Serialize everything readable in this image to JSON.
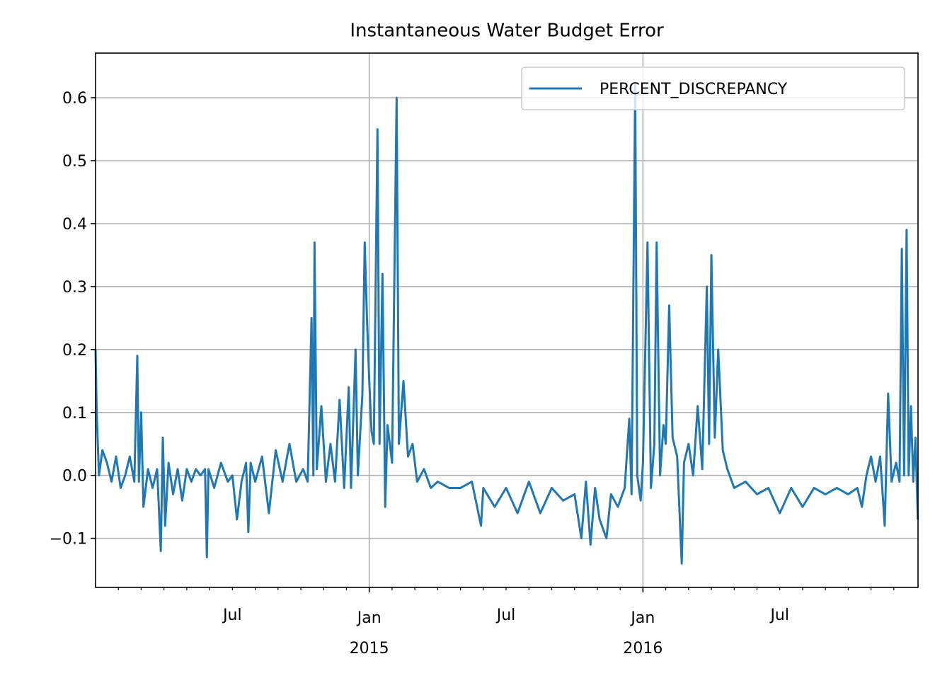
{
  "chart_data": {
    "type": "line",
    "title": "Instantaneous Water Budget Error",
    "x": [
      0,
      0.05,
      0.15,
      0.3,
      0.5,
      0.7,
      0.9,
      1.1,
      1.3,
      1.5,
      1.7,
      1.83,
      1.9,
      2.0,
      2.1,
      2.3,
      2.5,
      2.7,
      2.86,
      2.95,
      3.05,
      3.2,
      3.4,
      3.6,
      3.8,
      4.0,
      4.2,
      4.4,
      4.6,
      4.8,
      4.88,
      4.95,
      5.2,
      5.5,
      5.8,
      6.0,
      6.2,
      6.4,
      6.6,
      6.7,
      6.8,
      7.0,
      7.3,
      7.6,
      7.9,
      8.2,
      8.5,
      8.8,
      9.1,
      9.3,
      9.47,
      9.55,
      9.6,
      9.7,
      9.9,
      10.1,
      10.3,
      10.5,
      10.7,
      10.9,
      11.1,
      11.2,
      11.4,
      11.5,
      11.7,
      11.8,
      11.9,
      12.0,
      12.1,
      12.2,
      12.36,
      12.45,
      12.58,
      12.7,
      12.8,
      13.0,
      13.2,
      13.3,
      13.5,
      13.7,
      13.9,
      14.1,
      14.4,
      14.7,
      15.0,
      15.5,
      16.0,
      16.5,
      16.9,
      17.0,
      17.5,
      18.0,
      18.5,
      19.0,
      19.5,
      20.0,
      20.5,
      21.0,
      21.3,
      21.5,
      21.7,
      21.9,
      22.1,
      22.4,
      22.6,
      22.9,
      23.2,
      23.4,
      23.5,
      23.66,
      23.75,
      23.9,
      24.0,
      24.2,
      24.35,
      24.5,
      24.6,
      24.75,
      24.9,
      25.0,
      25.15,
      25.3,
      25.5,
      25.7,
      25.8,
      26.0,
      26.2,
      26.4,
      26.6,
      26.8,
      26.9,
      27.0,
      27.15,
      27.3,
      27.5,
      27.7,
      28.0,
      28.5,
      29.0,
      29.5,
      30.0,
      30.5,
      31.0,
      31.5,
      32.0,
      32.5,
      33.0,
      33.4,
      33.6,
      33.8,
      34.0,
      34.2,
      34.4,
      34.6,
      34.75,
      34.9,
      35.1,
      35.25,
      35.35,
      35.45,
      35.56,
      35.65,
      35.75,
      35.85,
      35.95,
      36.05
    ],
    "series": [
      {
        "name": "PERCENT_DISCREPANCY",
        "color": "#1f77b4",
        "values": [
          0.2,
          0.1,
          0.0,
          0.04,
          0.02,
          -0.01,
          0.03,
          -0.02,
          0.0,
          0.03,
          -0.01,
          0.19,
          -0.01,
          0.1,
          -0.05,
          0.01,
          -0.02,
          0.01,
          -0.12,
          0.06,
          -0.08,
          0.02,
          -0.03,
          0.01,
          -0.04,
          0.01,
          -0.01,
          0.01,
          0.0,
          0.01,
          -0.13,
          0.01,
          -0.02,
          0.02,
          -0.01,
          0.0,
          -0.07,
          -0.01,
          0.02,
          -0.09,
          0.02,
          -0.01,
          0.03,
          -0.06,
          0.04,
          -0.01,
          0.05,
          -0.01,
          0.01,
          -0.01,
          0.25,
          0.0,
          0.37,
          0.01,
          0.11,
          -0.01,
          0.05,
          -0.01,
          0.12,
          -0.02,
          0.14,
          -0.02,
          0.2,
          0.0,
          0.13,
          0.37,
          0.25,
          0.15,
          0.07,
          0.05,
          0.55,
          0.05,
          0.32,
          -0.05,
          0.08,
          0.02,
          0.6,
          0.05,
          0.15,
          0.03,
          0.05,
          -0.01,
          0.01,
          -0.02,
          -0.01,
          -0.02,
          -0.02,
          -0.01,
          -0.08,
          -0.02,
          -0.05,
          -0.02,
          -0.06,
          -0.01,
          -0.06,
          -0.02,
          -0.04,
          -0.03,
          -0.1,
          -0.01,
          -0.11,
          -0.02,
          -0.07,
          -0.1,
          -0.03,
          -0.05,
          -0.02,
          0.09,
          -0.03,
          0.62,
          0.0,
          -0.04,
          0.02,
          0.37,
          -0.02,
          0.05,
          0.37,
          0.0,
          0.08,
          0.05,
          0.27,
          0.06,
          0.03,
          -0.14,
          0.02,
          0.05,
          0.0,
          0.11,
          0.01,
          0.3,
          0.05,
          0.35,
          0.06,
          0.2,
          0.04,
          0.01,
          -0.02,
          -0.01,
          -0.03,
          -0.02,
          -0.06,
          -0.02,
          -0.05,
          -0.02,
          -0.03,
          -0.02,
          -0.03,
          -0.02,
          -0.05,
          0.0,
          0.03,
          -0.01,
          0.03,
          -0.08,
          0.13,
          -0.01,
          0.02,
          -0.01,
          0.36,
          0.0,
          0.39,
          0.0,
          0.11,
          -0.01,
          0.06,
          -0.07
        ]
      }
    ],
    "xlim": [
      0,
      36.06
    ],
    "xticks": [
      {
        "value": 12,
        "label": "Jan\n2015"
      },
      {
        "value": 24,
        "label": "Jan\n2016"
      }
    ],
    "xminorticks": [
      1,
      2,
      3,
      4,
      5,
      {
        "value": 6,
        "label": "Jul"
      },
      7,
      8,
      9,
      10,
      11,
      13,
      14,
      15,
      16,
      17,
      {
        "value": 18,
        "label": "Jul"
      },
      19,
      20,
      21,
      22,
      23,
      25,
      26,
      27,
      28,
      29,
      {
        "value": 30,
        "label": "Jul"
      },
      31,
      32,
      33,
      34,
      35
    ],
    "ylim": [
      -0.178,
      0.671
    ],
    "yticks": [
      {
        "value": -0.1,
        "label": "−0.1"
      },
      {
        "value": 0,
        "label": "0.0"
      },
      0.1,
      0.2,
      0.3,
      0.4,
      0.5,
      0.6
    ],
    "grid": true,
    "legend": "upper right"
  }
}
